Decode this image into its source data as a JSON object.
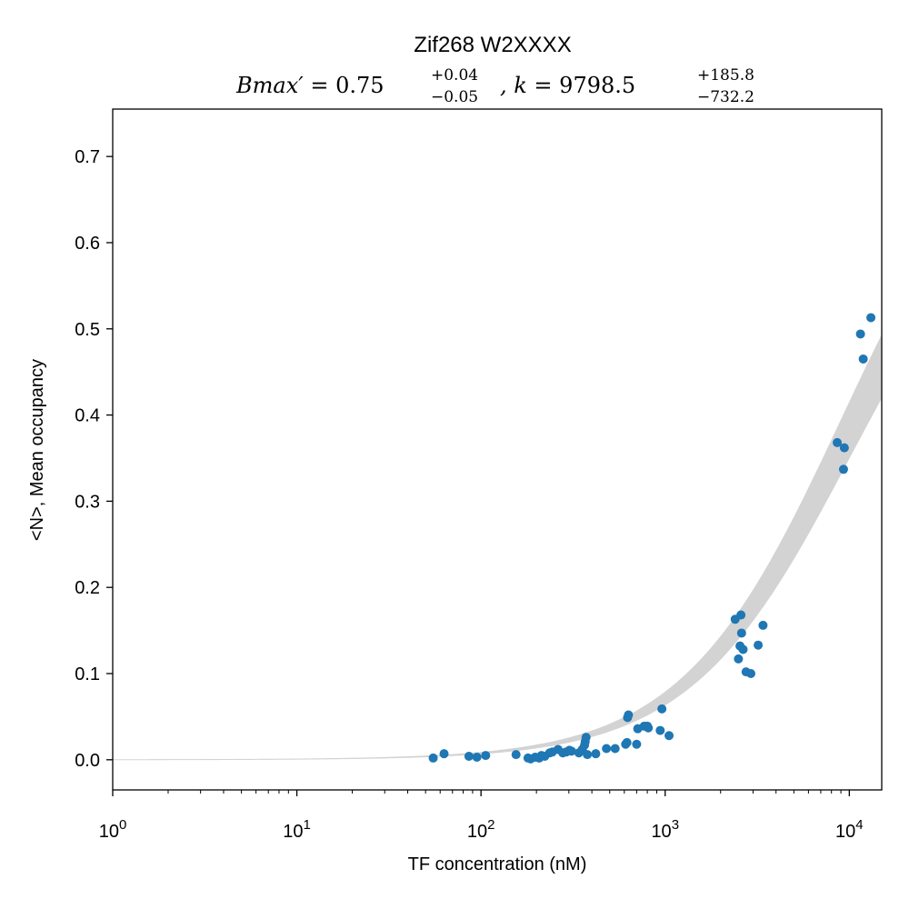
{
  "chart_data": {
    "type": "scatter",
    "title": "Zif268 W2XXXX",
    "subtitle": {
      "bmax_label": "Bmax′ = ",
      "bmax_value": "0.75",
      "bmax_plus": "+0.04",
      "bmax_minus": "−0.05",
      "k_label": ", k = ",
      "k_value": "9798.5",
      "k_plus": "+185.8",
      "k_minus": "−732.2"
    },
    "xlabel": "TF concentration (nM)",
    "ylabel": "<N>, Mean occupancy",
    "x_scale": "log",
    "xlim": [
      1,
      15000
    ],
    "ylim": [
      -0.035,
      0.755
    ],
    "x_major_ticks": [
      {
        "value": 1,
        "base": "10",
        "exp": "0"
      },
      {
        "value": 10,
        "base": "10",
        "exp": "1"
      },
      {
        "value": 100,
        "base": "10",
        "exp": "2"
      },
      {
        "value": 1000,
        "base": "10",
        "exp": "3"
      },
      {
        "value": 10000,
        "base": "10",
        "exp": "4"
      }
    ],
    "y_ticks": [
      0.0,
      0.1,
      0.2,
      0.3,
      0.4,
      0.5,
      0.6,
      0.7
    ],
    "y_tick_labels": [
      "0.0",
      "0.1",
      "0.2",
      "0.3",
      "0.4",
      "0.5",
      "0.6",
      "0.7"
    ],
    "grid": false,
    "marker_color": "#1f77b4",
    "band_color": "#d3d3d3",
    "fit_model": {
      "bmax": 0.75,
      "bmax_lo": 0.7,
      "bmax_hi": 0.79,
      "k": 9798.5,
      "k_lo": 9066.3,
      "k_hi": 9984.3
    },
    "series": [
      {
        "x": [
          55,
          63,
          86,
          95,
          106,
          155,
          180,
          186,
          197,
          207,
          213,
          222,
          236,
          244,
          262,
          278,
          290,
          302,
          310,
          340,
          355,
          365,
          368,
          372,
          378,
          420,
          480,
          535,
          610,
          620,
          625,
          632,
          700,
          710,
          770,
          800,
          810,
          940,
          960,
          1050,
          2400,
          2500,
          2550,
          2580,
          2600,
          2650,
          2750,
          2920,
          3200,
          3400,
          8600,
          9300,
          9400,
          11500,
          11900,
          13100
        ],
        "y": [
          0.002,
          0.007,
          0.004,
          0.003,
          0.005,
          0.006,
          0.002,
          0.001,
          0.003,
          0.002,
          0.005,
          0.004,
          0.008,
          0.009,
          0.012,
          0.008,
          0.009,
          0.011,
          0.01,
          0.008,
          0.012,
          0.017,
          0.021,
          0.026,
          0.006,
          0.007,
          0.013,
          0.013,
          0.018,
          0.02,
          0.049,
          0.052,
          0.018,
          0.036,
          0.039,
          0.039,
          0.037,
          0.034,
          0.059,
          0.028,
          0.163,
          0.117,
          0.132,
          0.168,
          0.147,
          0.128,
          0.102,
          0.1,
          0.133,
          0.156,
          0.368,
          0.337,
          0.362,
          0.494,
          0.465,
          0.513
        ]
      }
    ]
  }
}
